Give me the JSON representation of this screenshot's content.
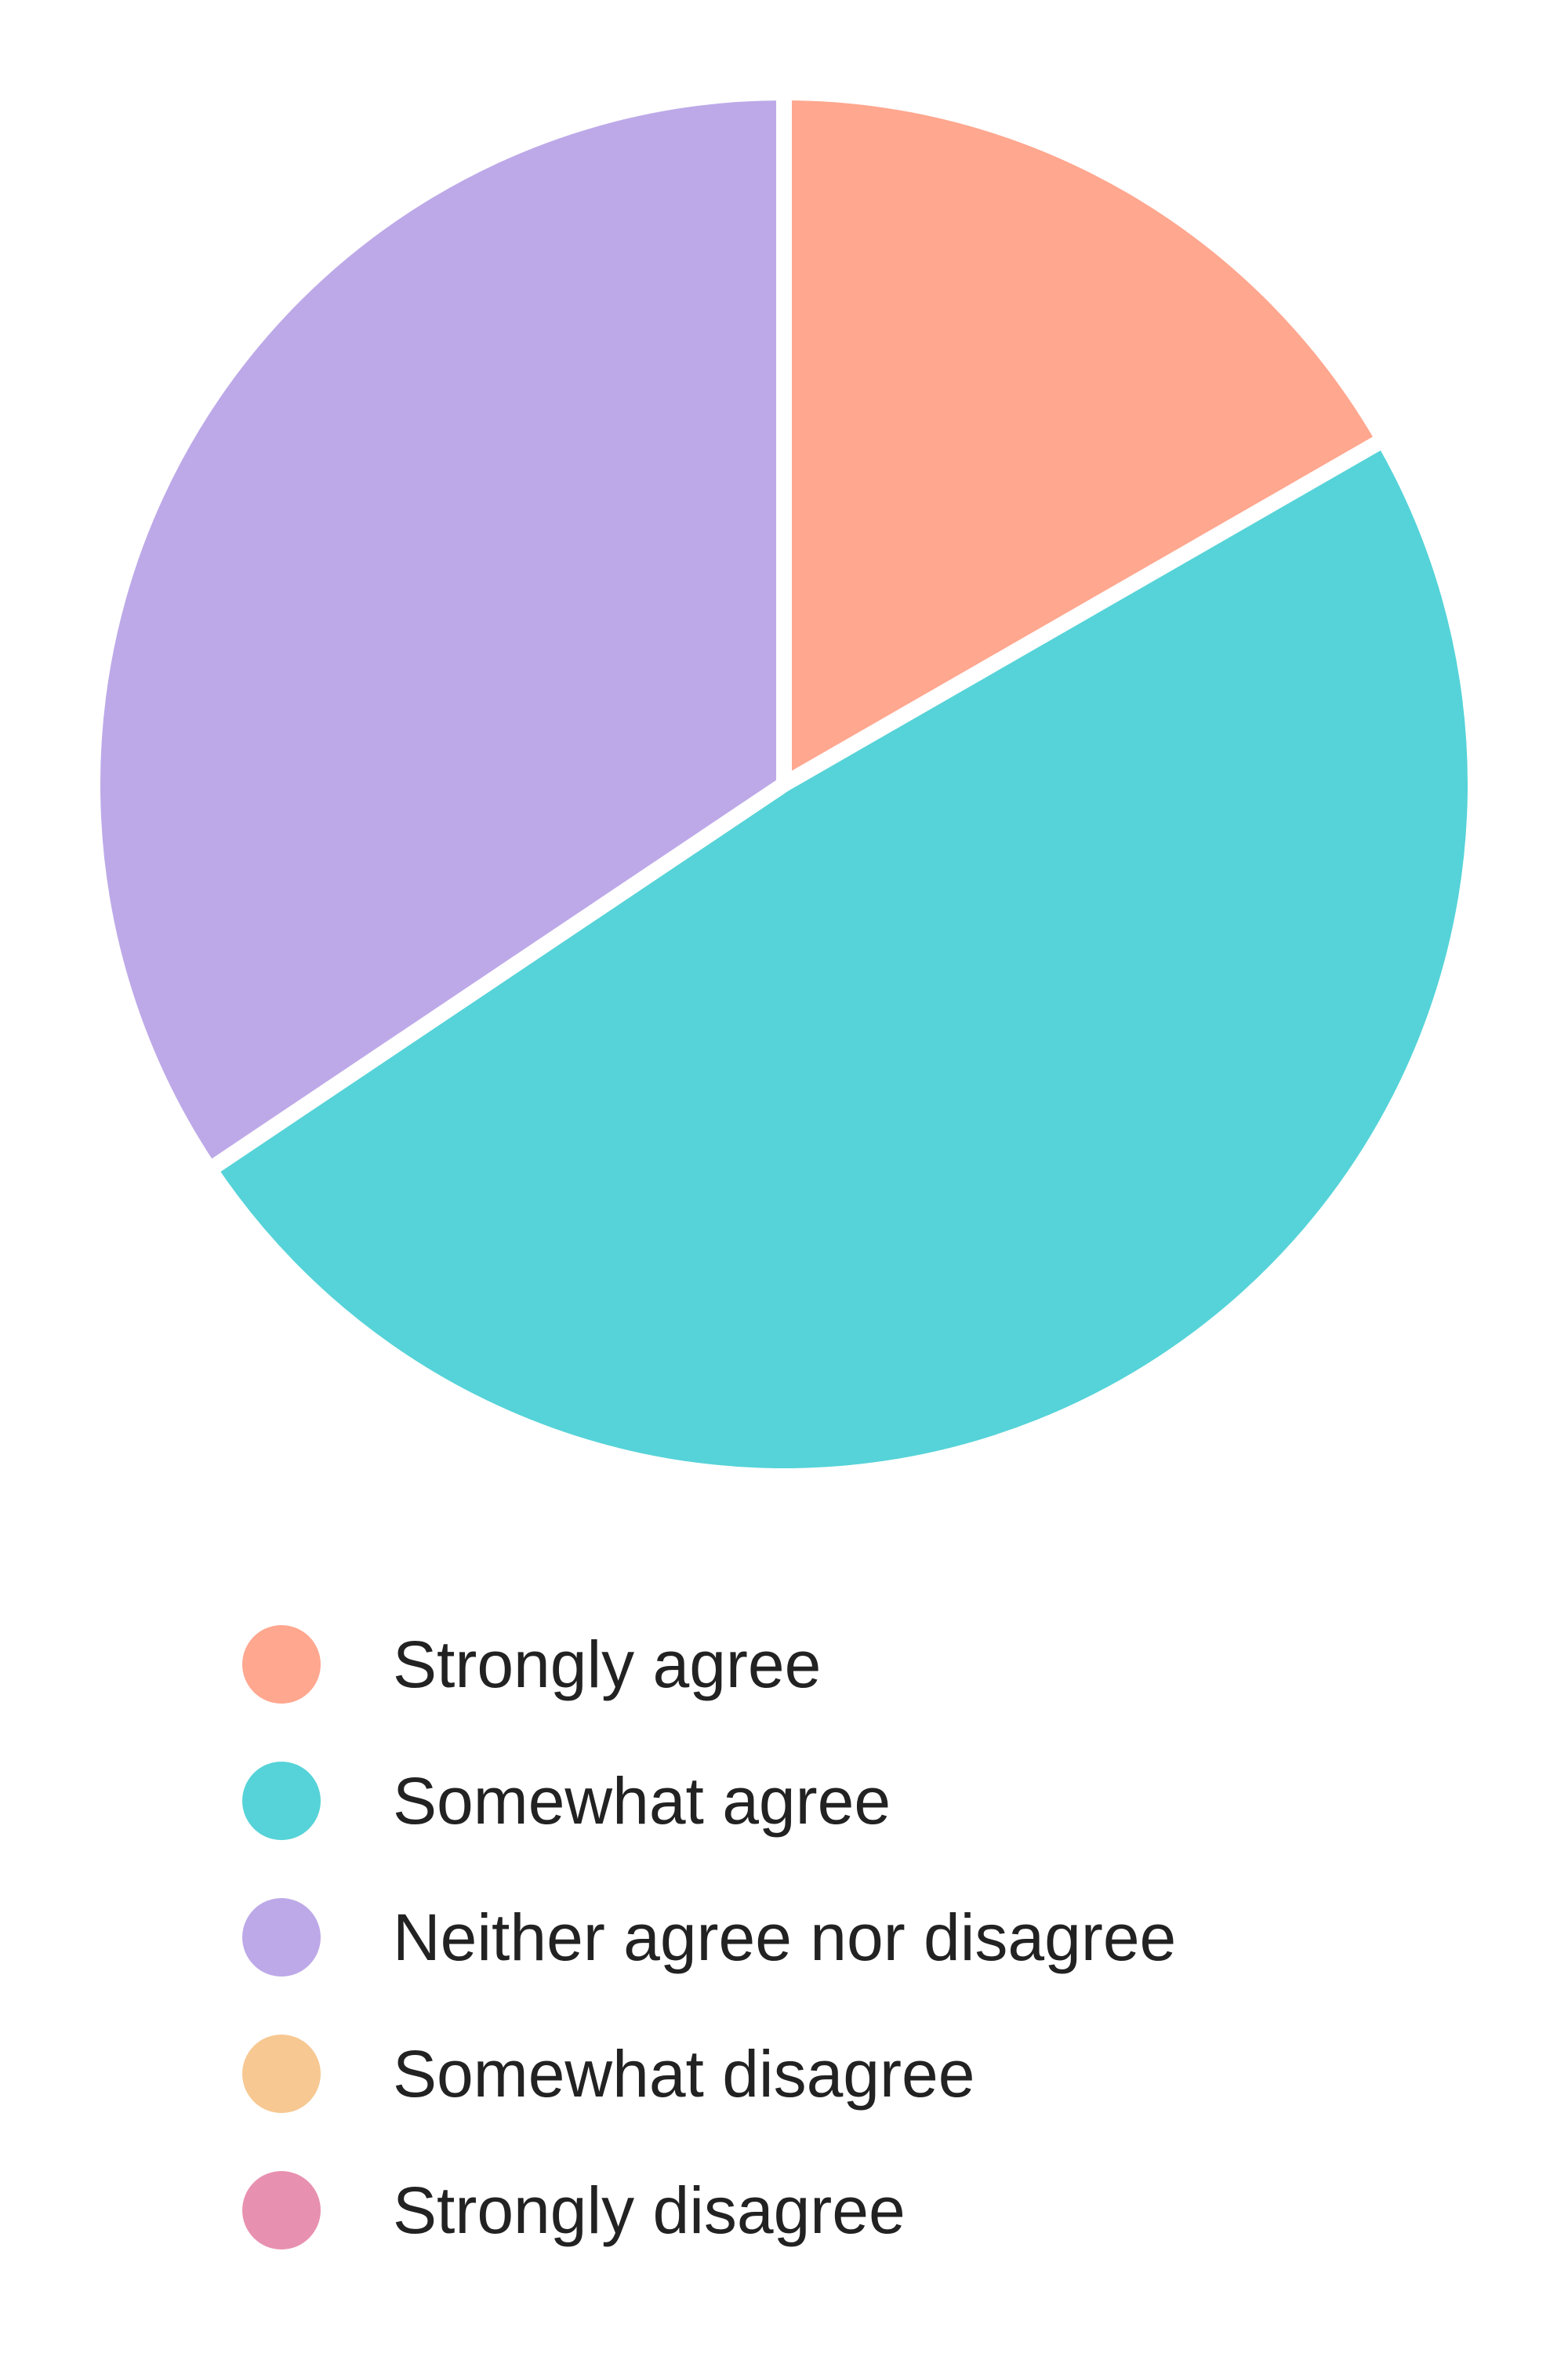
{
  "chart_data": {
    "type": "pie",
    "categories": [
      "Strongly agree",
      "Somewhat agree",
      "Neither agree nor disagree",
      "Somewhat disagree",
      "Strongly disagree"
    ],
    "values": [
      16.7,
      48.9,
      34.4,
      0,
      0
    ],
    "colors": [
      "#FFA78F",
      "#55D3D8",
      "#BDA9E8",
      "#F7C892",
      "#E890B0"
    ],
    "legend_position": "bottom",
    "title": ""
  }
}
